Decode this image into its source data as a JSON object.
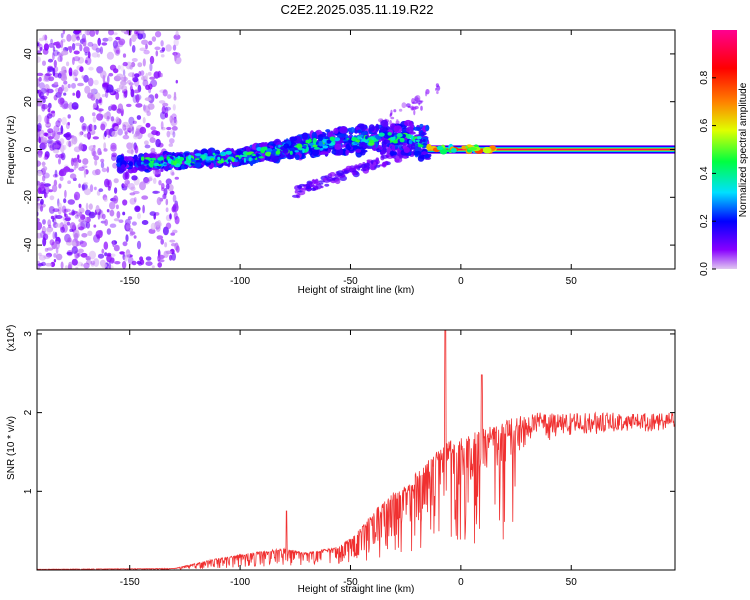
{
  "title": "C2E2.2025.035.11.19.R22",
  "chart_data": [
    {
      "type": "heatmap",
      "xlabel": "Height of straight line (km)",
      "ylabel": "Frequency (Hz)",
      "xlim": [
        -192,
        97
      ],
      "ylim": [
        -50,
        50
      ],
      "xticks": [
        -150,
        -100,
        -50,
        0,
        50
      ],
      "yticks": [
        -40,
        -20,
        0,
        20,
        40
      ],
      "colorbar": {
        "label": "Normalized spectral amplitude",
        "range": [
          0,
          1
        ],
        "ticks": [
          "0.0",
          "0.2",
          "0.4",
          "0.6",
          "0.8"
        ],
        "colormap": [
          "#e0c8f0",
          "#8800ff",
          "#0000ff",
          "#00e0ff",
          "#00ff40",
          "#e0ff00",
          "#ff8000",
          "#ff0000",
          "#ff0090"
        ]
      },
      "features": [
        {
          "name": "noise",
          "x_range": [
            -192,
            -128
          ],
          "freq_range": [
            -50,
            50
          ],
          "amplitude": 0.05
        },
        {
          "name": "main-band",
          "points": [
            [
              -150,
              -6
            ],
            [
              -100,
              -3
            ],
            [
              -60,
              3
            ],
            [
              -25,
              5
            ],
            [
              -15,
              2
            ]
          ],
          "amplitude": 0.35
        },
        {
          "name": "secondary-band",
          "points": [
            [
              -75,
              -18
            ],
            [
              -40,
              -6
            ],
            [
              -20,
              0
            ]
          ],
          "amplitude": 0.15
        },
        {
          "name": "tone-line",
          "x_range": [
            -15,
            97
          ],
          "freq": 0,
          "amplitude": 0.95
        }
      ]
    },
    {
      "type": "line",
      "xlabel": "Height of straight line (km)",
      "ylabel": "SNR (10 * v/v)",
      "y_multiplier": "(x10",
      "y_multiplier_exp": "4",
      "y_multiplier_close": ")",
      "xlim": [
        -192,
        97
      ],
      "ylim": [
        0,
        3.05
      ],
      "xticks": [
        -150,
        -100,
        -50,
        0,
        50
      ],
      "yticks": [
        1,
        2,
        3
      ],
      "color": "#f03030",
      "envelope": {
        "x": [
          -192,
          -130,
          -110,
          -95,
          -80,
          -70,
          -55,
          -45,
          -35,
          -25,
          -15,
          -5,
          5,
          15,
          25,
          35,
          50,
          70,
          97
        ],
        "max": [
          0.01,
          0.02,
          0.15,
          0.22,
          0.28,
          0.22,
          0.3,
          0.55,
          0.9,
          1.1,
          1.4,
          1.65,
          1.75,
          1.85,
          1.95,
          2.0,
          2.0,
          2.0,
          2.0
        ],
        "min": [
          0.0,
          0.0,
          0.02,
          0.04,
          0.05,
          0.05,
          0.08,
          0.15,
          0.3,
          0.5,
          0.7,
          0.9,
          1.1,
          1.3,
          1.45,
          1.6,
          1.7,
          1.75,
          1.85
        ]
      },
      "peaks": [
        {
          "x": -7,
          "y": 3.05
        },
        {
          "x": 9.5,
          "y": 2.48
        },
        {
          "x": -79,
          "y": 0.75
        }
      ]
    }
  ]
}
